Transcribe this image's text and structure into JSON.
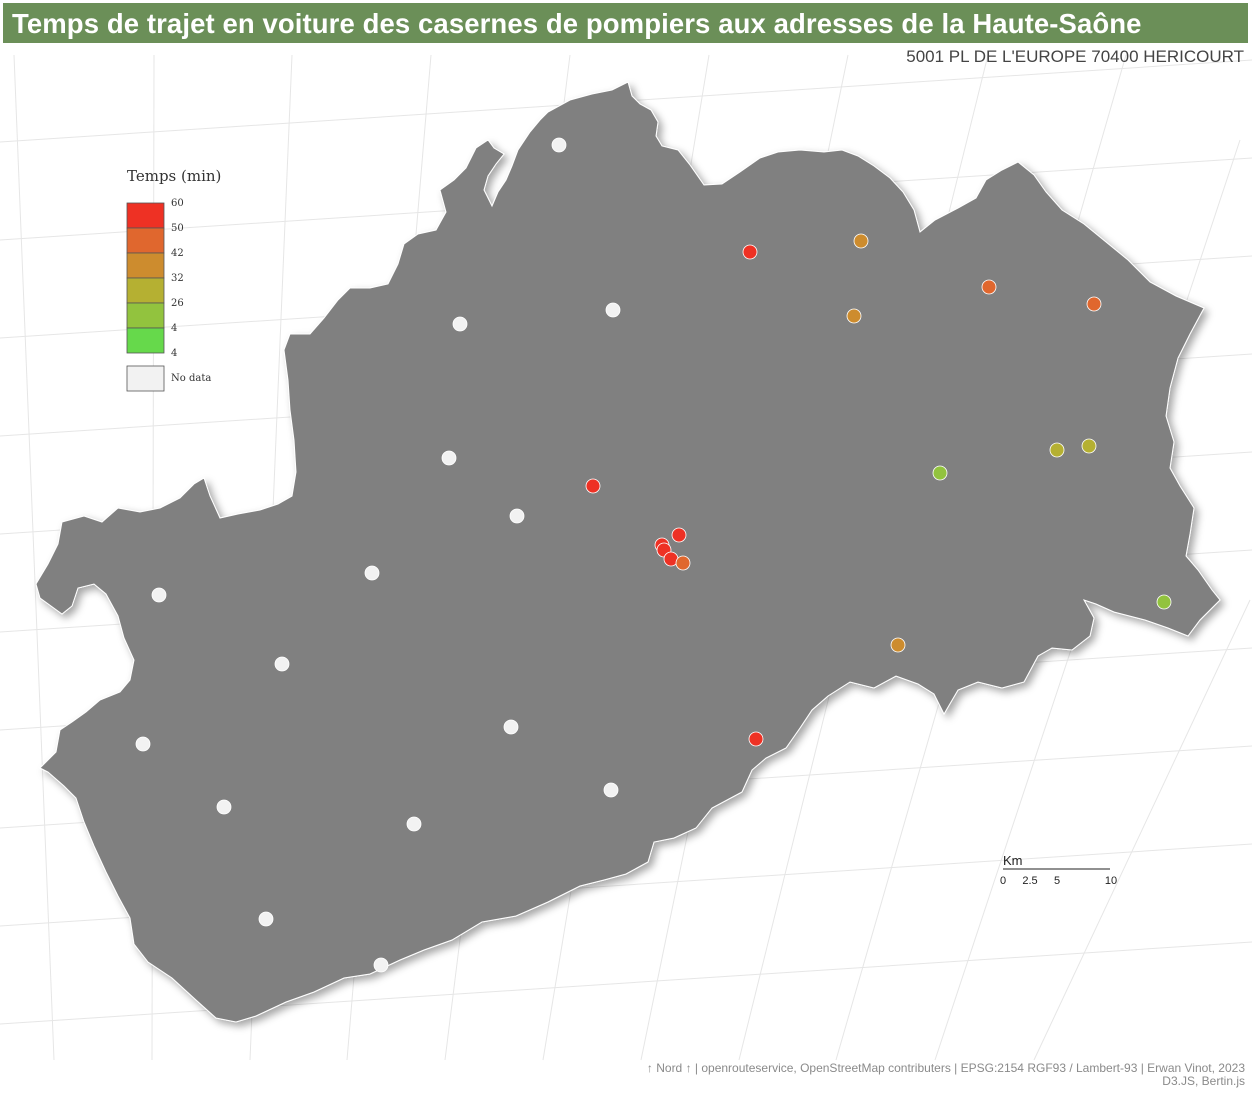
{
  "title": "Temps de trajet en voiture des casernes de pompiers aux adresses de la Haute-Saône",
  "subtitle": "5001 PL DE L'EUROPE 70400 HERICOURT",
  "legend": {
    "title": "Temps (min)",
    "classes": [
      {
        "color": "#ee3124",
        "label": "60"
      },
      {
        "color": "#e0672e",
        "label": "50"
      },
      {
        "color": "#cd8c2e",
        "label": "42"
      },
      {
        "color": "#b5b032",
        "label": "32"
      },
      {
        "color": "#92c33e",
        "label": "26"
      },
      {
        "color": "#66d94b",
        "label": "4"
      }
    ],
    "bottom_label": "4",
    "nodata_label": "No data",
    "nodata_color": "#f2f2f2"
  },
  "map": {
    "fill_color": "#808080",
    "stroke_color": "#ffffff"
  },
  "stations": [
    {
      "color": "#ee3124"
    },
    {
      "color": "#cd8c2e"
    },
    {
      "color": "#e0672e"
    },
    {
      "color": "#e0672e"
    },
    {
      "color": "#cd8c2e"
    },
    {
      "color": "#b5b032"
    },
    {
      "color": "#b5b032"
    },
    {
      "color": "#92c33e"
    },
    {
      "color": "#ee3124"
    },
    {
      "color": "#ee3124"
    },
    {
      "color": "#ee3124"
    },
    {
      "color": "#ee3124"
    },
    {
      "color": "#ee3124"
    },
    {
      "color": "#e0672e"
    },
    {
      "color": "#92c33e"
    },
    {
      "color": "#cd8c2e"
    },
    {
      "color": "#ee3124"
    },
    {
      "color": "#f2f2f2"
    },
    {
      "color": "#f2f2f2"
    },
    {
      "color": "#f2f2f2"
    },
    {
      "color": "#f2f2f2"
    },
    {
      "color": "#f2f2f2"
    },
    {
      "color": "#f2f2f2"
    },
    {
      "color": "#f2f2f2"
    },
    {
      "color": "#f2f2f2"
    },
    {
      "color": "#f2f2f2"
    },
    {
      "color": "#f2f2f2"
    },
    {
      "color": "#f2f2f2"
    },
    {
      "color": "#f2f2f2"
    },
    {
      "color": "#f2f2f2"
    },
    {
      "color": "#f2f2f2"
    },
    {
      "color": "#f2f2f2"
    },
    {
      "color": "#f2f2f2"
    },
    {
      "color": "#f2f2f2"
    }
  ],
  "scale_bar": {
    "title": "Km",
    "ticks": [
      "0",
      "2.5",
      "5",
      "10"
    ]
  },
  "footer": {
    "line1": "↑ Nord ↑ | openrouteservice, OpenStreetMap contributers | EPSG:2154 RGF93 / Lambert-93 | Erwan Vinot, 2023",
    "line2": "D3.JS, Bertin.js"
  }
}
